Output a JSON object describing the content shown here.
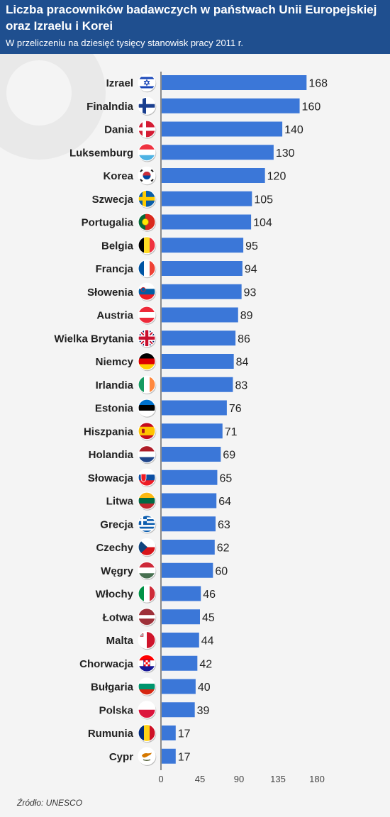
{
  "header": {
    "title": "Liczba pracowników badawczych w państwach Unii Europejskiej oraz Izraelu i Korei",
    "subtitle": "W przeliczeniu na dziesięć tysięcy stanowisk pracy 2011 r."
  },
  "footer": {
    "source": "Źródło: UNESCO"
  },
  "colors": {
    "header_bg": "#1f4f8f",
    "bar": "#3b77d8",
    "background": "#f4f4f4"
  },
  "chart_data": {
    "type": "bar",
    "orientation": "horizontal",
    "title": "Liczba pracowników badawczych w państwach Unii Europejskiej oraz Izraelu i Korei",
    "subtitle": "W przeliczeniu na dziesięć tysięcy stanowisk pracy 2011 r.",
    "xlabel": "",
    "ylabel": "",
    "xlim": [
      0,
      180
    ],
    "ticks": [
      0,
      45,
      90,
      135,
      180
    ],
    "grid": false,
    "data_labels": true,
    "categories": [
      "Izrael",
      "Finalndia",
      "Dania",
      "Luksemburg",
      "Korea",
      "Szwecja",
      "Portugalia",
      "Belgia",
      "Francja",
      "Słowenia",
      "Austria",
      "Wielka Brytania",
      "Niemcy",
      "Irlandia",
      "Estonia",
      "Hiszpania",
      "Holandia",
      "Słowacja",
      "Litwa",
      "Grecja",
      "Czechy",
      "Węgry",
      "Włochy",
      "Łotwa",
      "Malta",
      "Chorwacja",
      "Bułgaria",
      "Polska",
      "Rumunia",
      "Cypr"
    ],
    "values": [
      168,
      160,
      140,
      130,
      120,
      105,
      104,
      95,
      94,
      93,
      89,
      86,
      84,
      83,
      76,
      71,
      69,
      65,
      64,
      63,
      62,
      60,
      46,
      45,
      44,
      42,
      40,
      39,
      17,
      17
    ],
    "flag_icons": [
      "israel-flag-icon",
      "finland-flag-icon",
      "denmark-flag-icon",
      "luxembourg-flag-icon",
      "korea-flag-icon",
      "sweden-flag-icon",
      "portugal-flag-icon",
      "belgium-flag-icon",
      "france-flag-icon",
      "slovenia-flag-icon",
      "austria-flag-icon",
      "uk-flag-icon",
      "germany-flag-icon",
      "ireland-flag-icon",
      "estonia-flag-icon",
      "spain-flag-icon",
      "netherlands-flag-icon",
      "slovakia-flag-icon",
      "lithuania-flag-icon",
      "greece-flag-icon",
      "czechia-flag-icon",
      "hungary-flag-icon",
      "italy-flag-icon",
      "latvia-flag-icon",
      "malta-flag-icon",
      "croatia-flag-icon",
      "bulgaria-flag-icon",
      "poland-flag-icon",
      "romania-flag-icon",
      "cyprus-flag-icon"
    ]
  }
}
